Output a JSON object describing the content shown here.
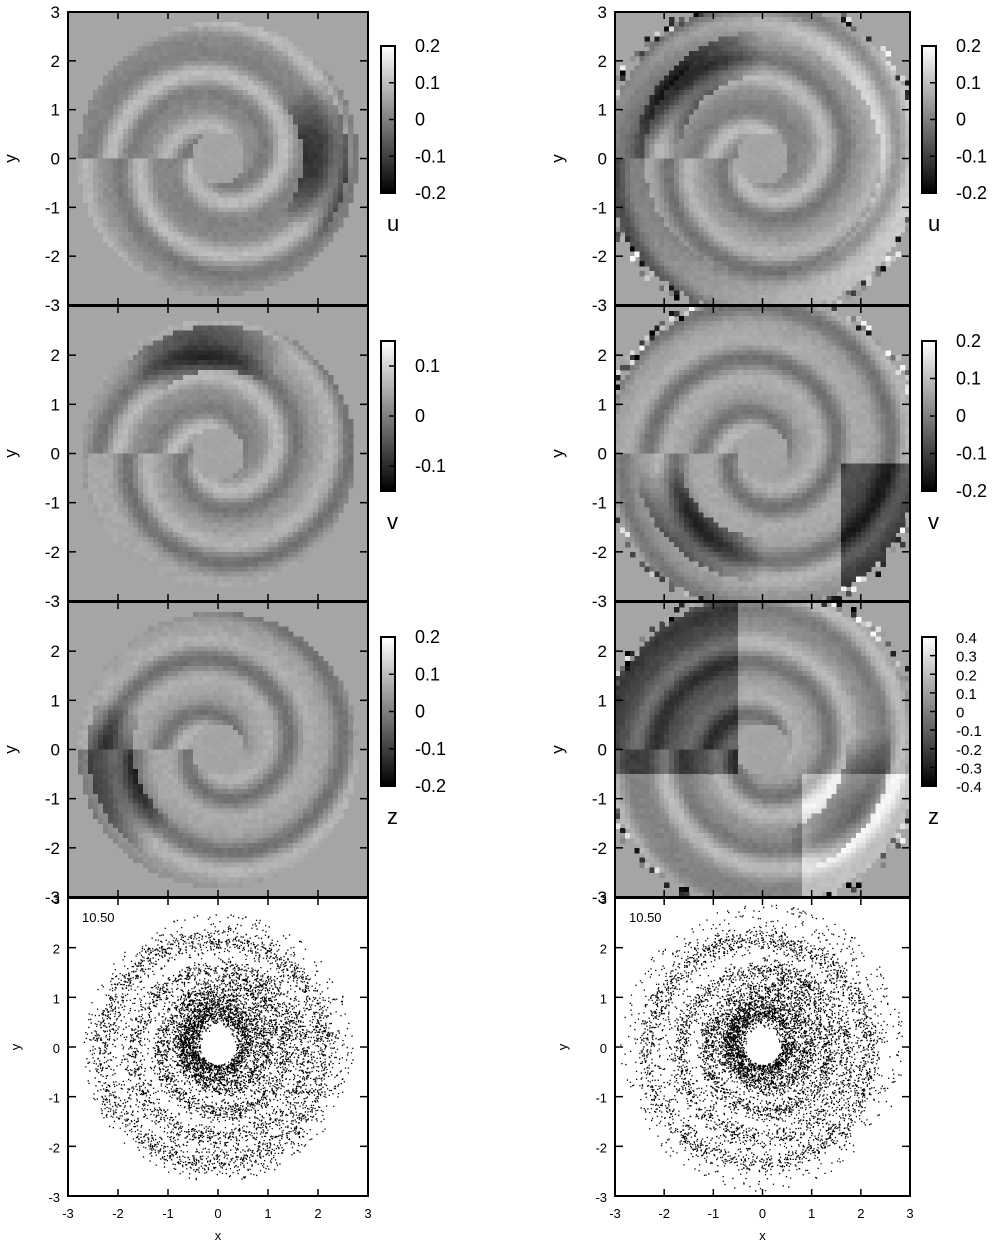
{
  "columns": [
    {
      "panels": [
        {
          "type": "heatmap",
          "ylabel": "y",
          "yticks": [
            "3",
            "2",
            "1",
            "0",
            "-1",
            "-2",
            "-3"
          ],
          "colorbar": {
            "label": "u",
            "ticks": [
              "0.2",
              "0.1",
              "0",
              "-0.1",
              "-0.2"
            ],
            "range": [
              -0.2,
              0.2
            ]
          }
        },
        {
          "type": "heatmap",
          "ylabel": "y",
          "yticks": [
            "2",
            "1",
            "0",
            "-1",
            "-2",
            "-3"
          ],
          "colorbar": {
            "label": "v",
            "ticks": [
              "0.1",
              "0",
              "-0.1"
            ],
            "range": [
              -0.15,
              0.15
            ]
          }
        },
        {
          "type": "heatmap",
          "ylabel": "y",
          "yticks": [
            "2",
            "1",
            "0",
            "-1",
            "-2",
            "-3"
          ],
          "colorbar": {
            "label": "z",
            "ticks": [
              "0.2",
              "0.1",
              "0",
              "-0.1",
              "-0.2"
            ],
            "range": [
              -0.2,
              0.2
            ]
          }
        },
        {
          "type": "scatter",
          "ylabel": "y",
          "xlabel": "x",
          "time": "10.50",
          "yticks": [
            "3",
            "2",
            "1",
            "0",
            "-1",
            "-2",
            "-3"
          ],
          "xticks": [
            "-3",
            "-2",
            "-1",
            "0",
            "1",
            "2",
            "3"
          ]
        }
      ]
    },
    {
      "panels": [
        {
          "type": "heatmap",
          "ylabel": "y",
          "yticks": [
            "3",
            "2",
            "1",
            "0",
            "-1",
            "-2",
            "-3"
          ],
          "colorbar": {
            "label": "u",
            "ticks": [
              "0.2",
              "0.1",
              "0",
              "-0.1",
              "-0.2"
            ],
            "range": [
              -0.2,
              0.2
            ]
          }
        },
        {
          "type": "heatmap",
          "ylabel": "y",
          "yticks": [
            "2",
            "1",
            "0",
            "-1",
            "-2",
            "-3"
          ],
          "colorbar": {
            "label": "v",
            "ticks": [
              "0.2",
              "0.1",
              "0",
              "-0.1",
              "-0.2"
            ],
            "range": [
              -0.2,
              0.2
            ]
          }
        },
        {
          "type": "heatmap",
          "ylabel": "y",
          "yticks": [
            "2",
            "1",
            "0",
            "-1",
            "-2",
            "-3"
          ],
          "colorbar": {
            "label": "z",
            "ticks": [
              "0.4",
              "0.3",
              "0.2",
              "0.1",
              "0",
              "-0.1",
              "-0.2",
              "-0.3",
              "-0.4"
            ],
            "range": [
              -0.4,
              0.4
            ]
          }
        },
        {
          "type": "scatter",
          "ylabel": "y",
          "xlabel": "x",
          "time": "10.50",
          "yticks": [
            "3",
            "2",
            "1",
            "0",
            "-1",
            "-2",
            "-3"
          ],
          "xticks": [
            "-3",
            "-2",
            "-1",
            "0",
            "1",
            "2",
            "3"
          ]
        }
      ]
    }
  ],
  "chart_data": [
    {
      "type": "heatmap",
      "panel": "left-u",
      "xlim": [
        -3,
        3
      ],
      "ylim": [
        -3,
        3
      ],
      "ylabel": "y",
      "colorbar_label": "u",
      "colorbar_range": [
        -0.2,
        0.2
      ]
    },
    {
      "type": "heatmap",
      "panel": "left-v",
      "xlim": [
        -3,
        3
      ],
      "ylim": [
        -3,
        3
      ],
      "ylabel": "y",
      "colorbar_label": "v",
      "colorbar_range": [
        -0.15,
        0.15
      ]
    },
    {
      "type": "heatmap",
      "panel": "left-z",
      "xlim": [
        -3,
        3
      ],
      "ylim": [
        -3,
        3
      ],
      "ylabel": "y",
      "colorbar_label": "z",
      "colorbar_range": [
        -0.2,
        0.2
      ]
    },
    {
      "type": "scatter",
      "panel": "left-particles",
      "xlim": [
        -3,
        3
      ],
      "ylim": [
        -3,
        3
      ],
      "xlabel": "x",
      "ylabel": "y",
      "annotation": "10.50",
      "inner_hole_radius": 0.35,
      "outer_radius": 2.7
    },
    {
      "type": "heatmap",
      "panel": "right-u",
      "xlim": [
        -3,
        3
      ],
      "ylim": [
        -3,
        3
      ],
      "ylabel": "y",
      "colorbar_label": "u",
      "colorbar_range": [
        -0.2,
        0.2
      ]
    },
    {
      "type": "heatmap",
      "panel": "right-v",
      "xlim": [
        -3,
        3
      ],
      "ylim": [
        -3,
        3
      ],
      "ylabel": "y",
      "colorbar_label": "v",
      "colorbar_range": [
        -0.2,
        0.2
      ]
    },
    {
      "type": "heatmap",
      "panel": "right-z",
      "xlim": [
        -3,
        3
      ],
      "ylim": [
        -3,
        3
      ],
      "ylabel": "y",
      "colorbar_label": "z",
      "colorbar_range": [
        -0.4,
        0.4
      ]
    },
    {
      "type": "scatter",
      "panel": "right-particles",
      "xlim": [
        -3,
        3
      ],
      "ylim": [
        -3,
        3
      ],
      "xlabel": "x",
      "ylabel": "y",
      "annotation": "10.50",
      "inner_hole_radius": 0.35,
      "outer_radius": 2.9
    }
  ]
}
